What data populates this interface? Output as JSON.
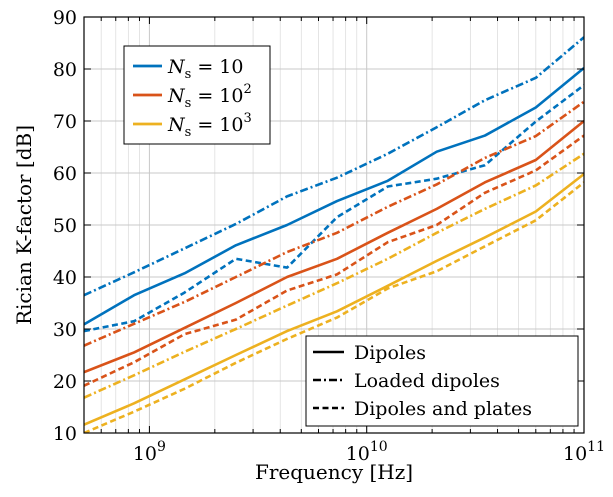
{
  "chart_data": {
    "type": "line",
    "xlabel": "Frequency [Hz]",
    "ylabel": "Rician K-factor [dB]",
    "xscale": "log",
    "xlim": [
      500000000,
      100000000000
    ],
    "ylim": [
      10,
      90
    ],
    "xticks": [
      {
        "value": 1000000000,
        "base": "10",
        "exp": "9"
      },
      {
        "value": 10000000000,
        "base": "10",
        "exp": "10"
      },
      {
        "value": 100000000000,
        "base": "10",
        "exp": "11"
      }
    ],
    "yticks": [
      10,
      20,
      30,
      40,
      50,
      60,
      70,
      80,
      90
    ],
    "grid": true,
    "colors": {
      "Ns10": "#0072bd",
      "Ns100": "#d95319",
      "Ns1000": "#edb120"
    },
    "legend_ns": {
      "position": "top-left",
      "entries": [
        {
          "key": "Ns10",
          "var": "N",
          "sub": "s",
          "rel": " = 10",
          "sup": ""
        },
        {
          "key": "Ns100",
          "var": "N",
          "sub": "s",
          "rel": " = 10",
          "sup": "2"
        },
        {
          "key": "Ns1000",
          "var": "N",
          "sub": "s",
          "rel": " = 10",
          "sup": "3"
        }
      ]
    },
    "legend_style": {
      "position": "bottom-right",
      "entries": [
        {
          "style": "solid",
          "label": "Dipoles"
        },
        {
          "style": "dashdot",
          "label": "Loaded dipoles"
        },
        {
          "style": "dashed",
          "label": "Dipoles and plates"
        }
      ]
    },
    "series": [
      {
        "color_key": "Ns10",
        "style": "solid",
        "x": [
          500000000,
          850000000,
          1450000000,
          2500000000,
          4300000000,
          7300000000,
          12500000000,
          21000000000,
          35000000000,
          60000000000,
          100000000000
        ],
        "y": [
          30.9,
          36.5,
          40.7,
          46.1,
          50.0,
          54.6,
          58.5,
          64.1,
          67.2,
          72.6,
          80.2
        ]
      },
      {
        "color_key": "Ns10",
        "style": "dashdot",
        "x": [
          500000000,
          850000000,
          1450000000,
          2500000000,
          4300000000,
          7300000000,
          12500000000,
          21000000000,
          35000000000,
          60000000000,
          100000000000
        ],
        "y": [
          36.5,
          40.9,
          45.5,
          50.2,
          55.5,
          59.1,
          63.7,
          68.8,
          74.0,
          78.3,
          86.1
        ]
      },
      {
        "color_key": "Ns10",
        "style": "dashed",
        "x": [
          500000000,
          850000000,
          1450000000,
          2500000000,
          4300000000,
          7300000000,
          12500000000,
          21000000000,
          35000000000,
          60000000000,
          100000000000
        ],
        "y": [
          29.6,
          31.5,
          37.0,
          43.5,
          41.8,
          51.5,
          57.4,
          58.9,
          61.5,
          69.9,
          76.9
        ]
      },
      {
        "color_key": "Ns100",
        "style": "solid",
        "x": [
          500000000,
          850000000,
          1450000000,
          2500000000,
          4300000000,
          7300000000,
          12500000000,
          21000000000,
          35000000000,
          60000000000,
          100000000000
        ],
        "y": [
          21.7,
          25.5,
          30.2,
          35.0,
          40.0,
          43.5,
          48.5,
          53.1,
          58.2,
          62.5,
          70.0
        ]
      },
      {
        "color_key": "Ns100",
        "style": "dashdot",
        "x": [
          500000000,
          850000000,
          1450000000,
          2500000000,
          4300000000,
          7300000000,
          12500000000,
          21000000000,
          35000000000,
          60000000000,
          100000000000
        ],
        "y": [
          26.8,
          31.0,
          35.2,
          40.0,
          44.8,
          48.5,
          53.5,
          57.8,
          62.9,
          67.1,
          73.7
        ]
      },
      {
        "color_key": "Ns100",
        "style": "dashed",
        "x": [
          500000000,
          850000000,
          1450000000,
          2500000000,
          4300000000,
          7300000000,
          12500000000,
          21000000000,
          35000000000,
          60000000000,
          100000000000
        ],
        "y": [
          19.1,
          23.6,
          29.0,
          31.8,
          37.4,
          40.5,
          46.7,
          50.0,
          56.2,
          60.5,
          67.2
        ]
      },
      {
        "color_key": "Ns1000",
        "style": "solid",
        "x": [
          500000000,
          850000000,
          1450000000,
          2500000000,
          4300000000,
          7300000000,
          12500000000,
          21000000000,
          35000000000,
          60000000000,
          100000000000
        ],
        "y": [
          11.6,
          15.7,
          20.3,
          25.0,
          29.6,
          33.4,
          38.3,
          43.1,
          47.6,
          52.6,
          59.8
        ]
      },
      {
        "color_key": "Ns1000",
        "style": "dashdot",
        "x": [
          500000000,
          850000000,
          1450000000,
          2500000000,
          4300000000,
          7300000000,
          12500000000,
          21000000000,
          35000000000,
          60000000000,
          100000000000
        ],
        "y": [
          16.8,
          21.1,
          25.6,
          30.0,
          34.5,
          38.8,
          43.5,
          48.5,
          53.1,
          57.6,
          63.7
        ]
      },
      {
        "color_key": "Ns1000",
        "style": "dashed",
        "x": [
          500000000,
          850000000,
          1450000000,
          2500000000,
          4300000000,
          7300000000,
          12500000000,
          21000000000,
          35000000000,
          60000000000,
          100000000000
        ],
        "y": [
          10.0,
          14.1,
          18.5,
          23.5,
          28.1,
          32.2,
          37.8,
          41.1,
          45.9,
          50.9,
          58.2
        ]
      }
    ]
  }
}
